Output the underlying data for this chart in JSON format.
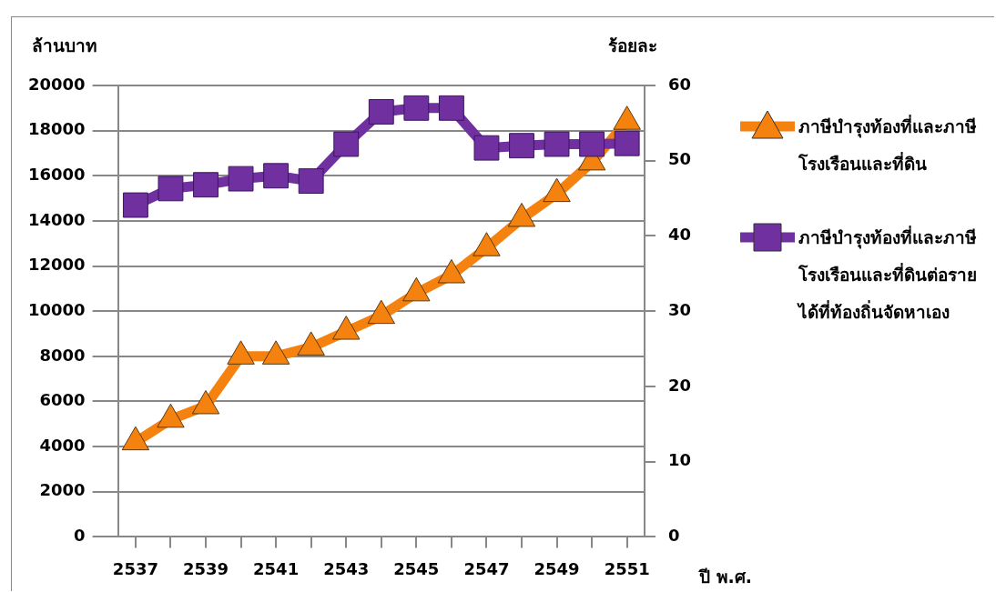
{
  "chart_data": {
    "type": "line",
    "xlabel": "ปี พ.ศ.",
    "ylabel": "ล้านบาท",
    "y2label": "ร้อยละ",
    "categories": [
      "2537",
      null,
      "2539",
      null,
      "2541",
      null,
      "2543",
      null,
      "2545",
      null,
      "2547",
      null,
      "2549",
      null,
      "2551"
    ],
    "series": [
      {
        "name": "ภาษีบำรุงท้องที่และภาษีโรงเรือนและที่ดิน",
        "color": "#f5820f",
        "marker": "triangle",
        "values": [
          4200,
          5200,
          5800,
          8000,
          8000,
          8400,
          9100,
          9800,
          10800,
          11600,
          12800,
          14100,
          15200,
          16600,
          18400
        ]
      },
      {
        "name": "ภาษีบำรุงท้องที่และภาษีโรงเรือนและที่ดินต่อรายได้ที่ท้องถิ่นจัดหาเอง",
        "color": "#7030a0",
        "marker": "square",
        "axis": "y2",
        "values": [
          44.1,
          46.3,
          46.8,
          47.6,
          48.0,
          47.3,
          52.2,
          56.5,
          57.0,
          57.0,
          51.7,
          52.0,
          52.2,
          52.2,
          52.3
        ]
      }
    ],
    "ylim": [
      0,
      20000
    ],
    "yticks": [
      0,
      2000,
      4000,
      6000,
      8000,
      10000,
      12000,
      14000,
      16000,
      18000,
      20000
    ],
    "y2lim": [
      0,
      60
    ],
    "y2ticks": [
      0,
      10,
      20,
      30,
      40,
      50,
      60
    ],
    "grid": "y",
    "legend": "right",
    "line_style": "solid"
  }
}
